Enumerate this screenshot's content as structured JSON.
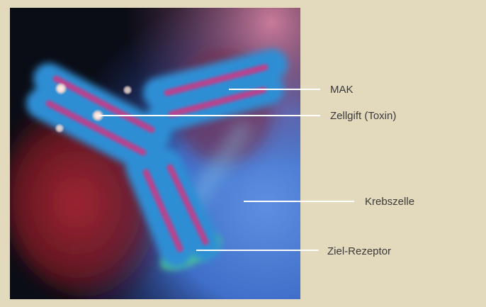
{
  "colors": {
    "page_background": "#e3d9bd",
    "label_text": "#3a3a3a",
    "leader_line": "#ffffff",
    "antibody_core": "#b8438e",
    "antibody_glow": "#2f8ed4",
    "toxin_particle": "#f3e6e0",
    "receptor_glow": "#4fd486",
    "cell_background_blue": "#3f6fc9",
    "cell_background_red": "#8c1c27",
    "cell_background_dark": "#0a0d16"
  },
  "labels": {
    "antibody": "MAK",
    "toxin": "Zellgift (Toxin)",
    "cancer_cell": "Krebszelle",
    "target_receptor": "Ziel-Rezeptor"
  }
}
